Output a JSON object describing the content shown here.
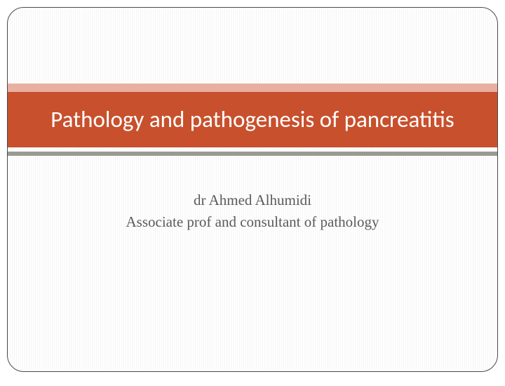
{
  "slide": {
    "title": "Pathology and pathogenesis of pancreatitis",
    "author": "dr Ahmed Alhumidi",
    "role": "Associate prof and consultant of pathology"
  },
  "style": {
    "title_band_color": "#c8502c",
    "title_band_top_accent": "#e8b0a0",
    "title_band_bottom_accent": "#9a9a92",
    "title_text_color": "#ffffff",
    "subtitle_text_color": "#5a5a5a",
    "border_color": "#4a4a4a",
    "background_stripe_light": "#ffffff",
    "background_stripe_dark": "#f5f5f5",
    "title_fontsize": 33,
    "subtitle_fontsize": 21,
    "border_radius": 24
  }
}
